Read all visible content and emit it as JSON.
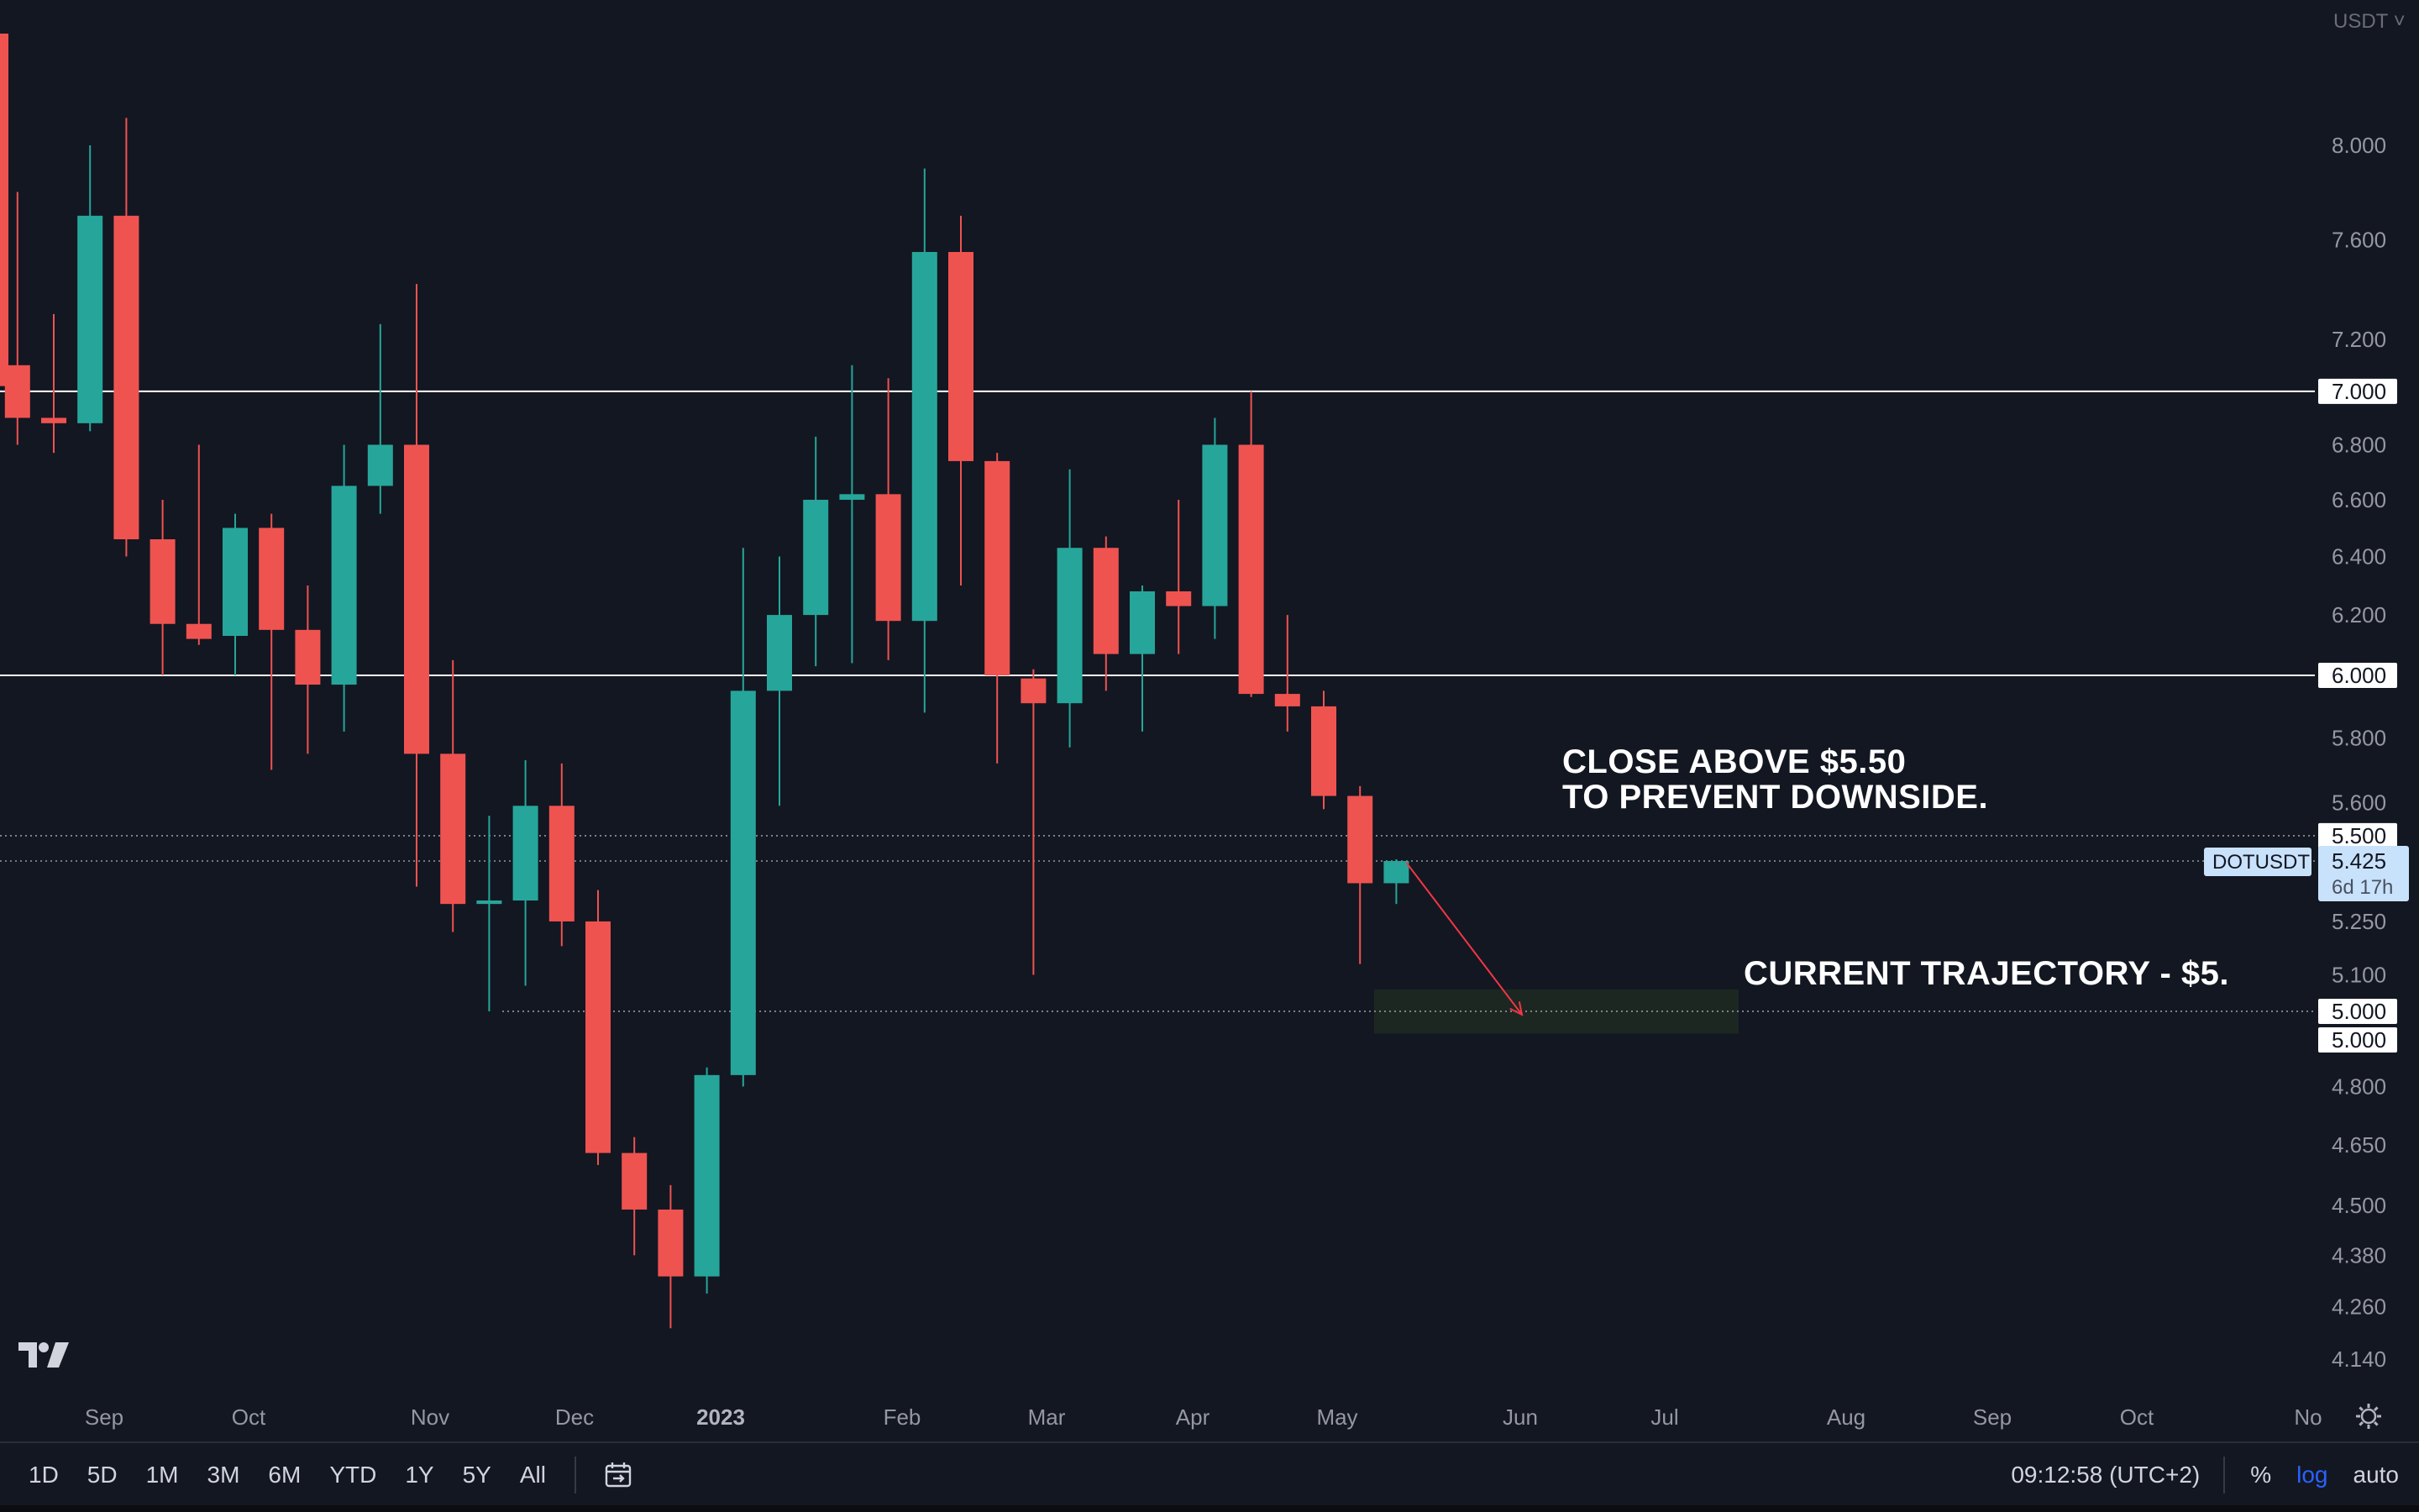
{
  "currency_label": "USDT",
  "symbol": "DOTUSDT",
  "countdown": "6d 17h",
  "annotations": {
    "upper_line1": "CLOSE ABOVE $5.50",
    "upper_line2": "TO PREVENT DOWNSIDE.",
    "lower": "CURRENT TRAJECTORY - $5."
  },
  "bottom_toolbar": {
    "ranges": [
      "1D",
      "5D",
      "1M",
      "3M",
      "6M",
      "YTD",
      "1Y",
      "5Y",
      "All"
    ],
    "clock": "09:12:58 (UTC+2)",
    "percent_label": "%",
    "log_label": "log",
    "auto_label": "auto"
  },
  "colors": {
    "background": "#131722",
    "up": "#26a69a",
    "down": "#ef5350",
    "level_line": "#ffffff",
    "arrow": "#f23645",
    "target_zone": "#1e2a22"
  },
  "chart_data": {
    "type": "candlestick",
    "interval": "weekly",
    "y_scale": "log",
    "ylim": [
      4.08,
      8.5
    ],
    "y_ticks": [
      "8.000",
      "7.600",
      "7.200",
      "6.800",
      "6.600",
      "6.400",
      "6.200",
      "5.800",
      "5.600",
      "5.250",
      "5.100",
      "4.800",
      "4.650",
      "4.500",
      "4.380",
      "4.260",
      "4.140"
    ],
    "x_tick_labels": [
      "Sep",
      "Oct",
      "Nov",
      "Dec",
      "2023",
      "Feb",
      "Mar",
      "Apr",
      "May",
      "Jun",
      "Jul",
      "Aug",
      "Sep",
      "Oct",
      "No"
    ],
    "level_labels": [
      "7.000",
      "6.000",
      "5.500",
      "5.000",
      "5.000"
    ],
    "current_price": "5.425",
    "horizontal_levels": [
      {
        "price": 7.0,
        "style": "solid"
      },
      {
        "price": 6.0,
        "style": "solid"
      },
      {
        "price": 5.5,
        "style": "dotted"
      },
      {
        "price": 5.425,
        "style": "dotted"
      },
      {
        "price": 5.0,
        "style": "dotted"
      }
    ],
    "target_zone": {
      "price_from": 4.94,
      "price_to": 5.06
    },
    "candles": [
      {
        "date": "2022-08-22",
        "open": 7.1,
        "high": 7.8,
        "low": 6.8,
        "close": 6.9
      },
      {
        "date": "2022-08-29",
        "open": 6.9,
        "high": 7.3,
        "low": 6.77,
        "close": 6.88
      },
      {
        "date": "2022-09-05",
        "open": 6.88,
        "high": 8.0,
        "low": 6.85,
        "close": 7.7
      },
      {
        "date": "2022-09-12",
        "open": 7.7,
        "high": 8.12,
        "low": 6.4,
        "close": 6.46
      },
      {
        "date": "2022-09-19",
        "open": 6.46,
        "high": 6.6,
        "low": 6.0,
        "close": 6.17
      },
      {
        "date": "2022-09-26",
        "open": 6.17,
        "high": 6.8,
        "low": 6.1,
        "close": 6.12
      },
      {
        "date": "2022-10-03",
        "open": 6.13,
        "high": 6.55,
        "low": 6.0,
        "close": 6.5
      },
      {
        "date": "2022-10-10",
        "open": 6.5,
        "high": 6.55,
        "low": 5.7,
        "close": 6.15
      },
      {
        "date": "2022-10-17",
        "open": 6.15,
        "high": 6.3,
        "low": 5.75,
        "close": 5.97
      },
      {
        "date": "2022-10-24",
        "open": 5.97,
        "high": 6.8,
        "low": 5.82,
        "close": 6.65
      },
      {
        "date": "2022-10-31",
        "open": 6.65,
        "high": 7.26,
        "low": 6.55,
        "close": 6.8
      },
      {
        "date": "2022-11-07",
        "open": 6.8,
        "high": 7.42,
        "low": 5.35,
        "close": 5.75
      },
      {
        "date": "2022-11-14",
        "open": 5.75,
        "high": 6.05,
        "low": 5.22,
        "close": 5.3
      },
      {
        "date": "2022-11-21",
        "open": 5.3,
        "high": 5.56,
        "low": 5.0,
        "close": 5.31
      },
      {
        "date": "2022-11-28",
        "open": 5.31,
        "high": 5.73,
        "low": 5.07,
        "close": 5.59
      },
      {
        "date": "2022-12-05",
        "open": 5.59,
        "high": 5.72,
        "low": 5.18,
        "close": 5.25
      },
      {
        "date": "2022-12-12",
        "open": 5.25,
        "high": 5.34,
        "low": 4.6,
        "close": 4.63
      },
      {
        "date": "2022-12-19",
        "open": 4.63,
        "high": 4.67,
        "low": 4.38,
        "close": 4.49
      },
      {
        "date": "2022-12-26",
        "open": 4.49,
        "high": 4.55,
        "low": 4.21,
        "close": 4.33
      },
      {
        "date": "2023-01-02",
        "open": 4.33,
        "high": 4.85,
        "low": 4.29,
        "close": 4.83
      },
      {
        "date": "2023-01-09",
        "open": 4.83,
        "high": 6.43,
        "low": 4.8,
        "close": 5.95
      },
      {
        "date": "2023-01-16",
        "open": 5.95,
        "high": 6.4,
        "low": 5.59,
        "close": 6.2
      },
      {
        "date": "2023-01-23",
        "open": 6.2,
        "high": 6.83,
        "low": 6.03,
        "close": 6.6
      },
      {
        "date": "2023-01-30",
        "open": 6.6,
        "high": 7.1,
        "low": 6.04,
        "close": 6.62
      },
      {
        "date": "2023-02-06",
        "open": 6.62,
        "high": 7.05,
        "low": 6.05,
        "close": 6.18
      },
      {
        "date": "2023-02-13",
        "open": 6.18,
        "high": 7.9,
        "low": 5.88,
        "close": 7.55
      },
      {
        "date": "2023-02-20",
        "open": 7.55,
        "high": 7.7,
        "low": 6.3,
        "close": 6.74
      },
      {
        "date": "2023-02-27",
        "open": 6.74,
        "high": 6.77,
        "low": 5.72,
        "close": 6.0
      },
      {
        "date": "2023-03-06",
        "open": 5.99,
        "high": 6.02,
        "low": 5.1,
        "close": 5.91
      },
      {
        "date": "2023-03-13",
        "open": 5.91,
        "high": 6.71,
        "low": 5.77,
        "close": 6.43
      },
      {
        "date": "2023-03-20",
        "open": 6.43,
        "high": 6.47,
        "low": 5.95,
        "close": 6.07
      },
      {
        "date": "2023-03-27",
        "open": 6.07,
        "high": 6.3,
        "low": 5.82,
        "close": 6.28
      },
      {
        "date": "2023-04-03",
        "open": 6.28,
        "high": 6.6,
        "low": 6.07,
        "close": 6.23
      },
      {
        "date": "2023-04-10",
        "open": 6.23,
        "high": 6.9,
        "low": 6.12,
        "close": 6.8
      },
      {
        "date": "2023-04-17",
        "open": 6.8,
        "high": 7.0,
        "low": 5.93,
        "close": 5.94
      },
      {
        "date": "2023-04-24",
        "open": 5.94,
        "high": 6.2,
        "low": 5.82,
        "close": 5.9
      },
      {
        "date": "2023-05-01",
        "open": 5.9,
        "high": 5.95,
        "low": 5.58,
        "close": 5.62
      },
      {
        "date": "2023-05-08",
        "open": 5.62,
        "high": 5.65,
        "low": 5.13,
        "close": 5.36
      },
      {
        "date": "2023-05-15",
        "open": 5.36,
        "high": 5.43,
        "low": 5.3,
        "close": 5.425
      }
    ]
  }
}
